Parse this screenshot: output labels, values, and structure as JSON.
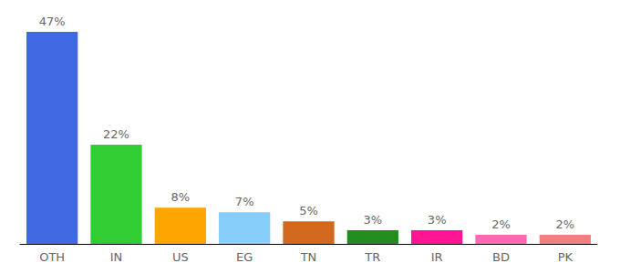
{
  "chart_data": {
    "type": "bar",
    "categories": [
      "OTH",
      "IN",
      "US",
      "EG",
      "TN",
      "TR",
      "IR",
      "BD",
      "PK"
    ],
    "values": [
      47,
      22,
      8,
      7,
      5,
      3,
      3,
      2,
      2
    ],
    "value_labels": [
      "47%",
      "22%",
      "8%",
      "7%",
      "5%",
      "3%",
      "3%",
      "2%",
      "2%"
    ],
    "colors": [
      "#4169e1",
      "#32cd32",
      "#ffa500",
      "#87cefa",
      "#d2691e",
      "#228b22",
      "#ff1493",
      "#ff69b4",
      "#f08080"
    ],
    "data_labels": true,
    "tick_labels": "x",
    "grid": false
  }
}
